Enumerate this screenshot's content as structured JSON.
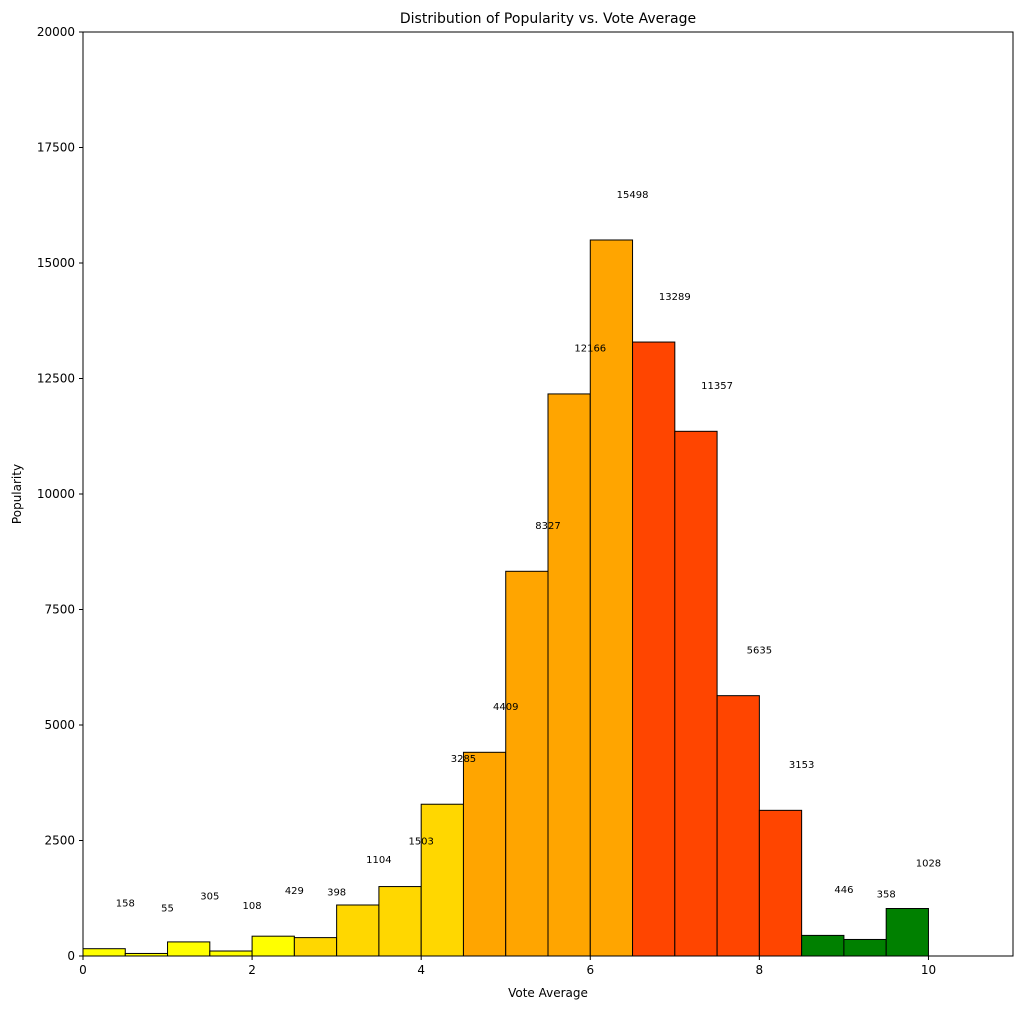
{
  "chart_data": {
    "type": "bar",
    "title": "Distribution of Popularity vs. Vote Average",
    "xlabel": "Vote Average",
    "ylabel": "Popularity",
    "xlim": [
      0,
      11
    ],
    "ylim": [
      0,
      20000
    ],
    "bin_width": 0.5,
    "x_ticks": [
      0,
      2,
      4,
      6,
      8,
      10
    ],
    "y_ticks": [
      0,
      2500,
      5000,
      7500,
      10000,
      12500,
      15000,
      17500,
      20000
    ],
    "grid": false,
    "bars": [
      {
        "x": 0.0,
        "value": 158,
        "label": "158",
        "color": "#FFFF00"
      },
      {
        "x": 0.5,
        "value": 55,
        "label": "55",
        "color": "#FFFF00"
      },
      {
        "x": 1.0,
        "value": 305,
        "label": "305",
        "color": "#FFFF00"
      },
      {
        "x": 1.5,
        "value": 108,
        "label": "108",
        "color": "#FFFF00"
      },
      {
        "x": 2.0,
        "value": 429,
        "label": "429",
        "color": "#FFFF00"
      },
      {
        "x": 2.5,
        "value": 398,
        "label": "398",
        "color": "#FFD700"
      },
      {
        "x": 3.0,
        "value": 1104,
        "label": "1104",
        "color": "#FFD700"
      },
      {
        "x": 3.5,
        "value": 1503,
        "label": "1503",
        "color": "#FFD700"
      },
      {
        "x": 4.0,
        "value": 3285,
        "label": "3285",
        "color": "#FFD700"
      },
      {
        "x": 4.5,
        "value": 4409,
        "label": "4409",
        "color": "#FFA500"
      },
      {
        "x": 5.0,
        "value": 8327,
        "label": "8327",
        "color": "#FFA500"
      },
      {
        "x": 5.5,
        "value": 12166,
        "label": "12166",
        "color": "#FFA500"
      },
      {
        "x": 6.0,
        "value": 15498,
        "label": "15498",
        "color": "#FFA500"
      },
      {
        "x": 6.5,
        "value": 13289,
        "label": "13289",
        "color": "#FF4500"
      },
      {
        "x": 7.0,
        "value": 11357,
        "label": "11357",
        "color": "#FF4500"
      },
      {
        "x": 7.5,
        "value": 5635,
        "label": "5635",
        "color": "#FF4500"
      },
      {
        "x": 8.0,
        "value": 3153,
        "label": "3153",
        "color": "#FF4500"
      },
      {
        "x": 8.5,
        "value": 446,
        "label": "446",
        "color": "#008000"
      },
      {
        "x": 9.0,
        "value": 358,
        "label": "358",
        "color": "#008000"
      },
      {
        "x": 9.5,
        "value": 1028,
        "label": "1028",
        "color": "#008000"
      }
    ]
  }
}
